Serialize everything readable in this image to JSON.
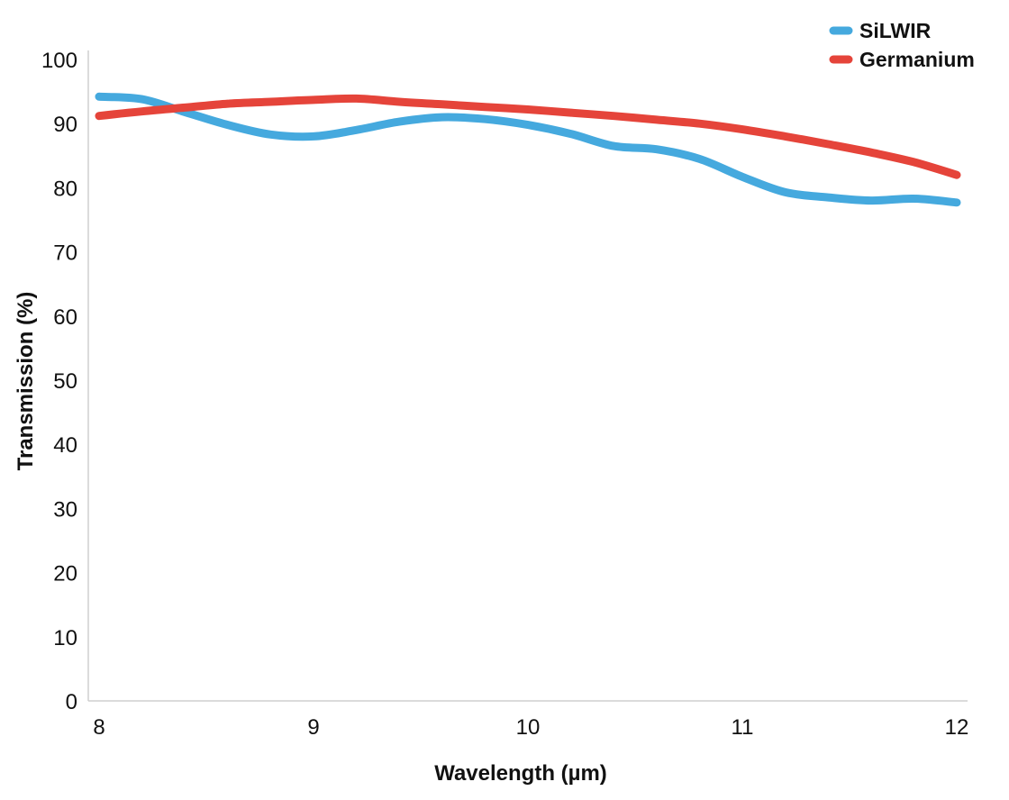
{
  "chart_data": {
    "type": "line",
    "xlabel": "Wavelength (µm)",
    "ylabel": "Transmission (%)",
    "xlim": [
      8,
      12
    ],
    "ylim": [
      0,
      100
    ],
    "xticks": [
      "8",
      "9",
      "10",
      "11",
      "12"
    ],
    "yticks": [
      "0",
      "10",
      "20",
      "30",
      "40",
      "50",
      "60",
      "70",
      "80",
      "90",
      "100"
    ],
    "grid": false,
    "legend_position": "top-right",
    "series": [
      {
        "name": "SiLWIR",
        "color": "#45a9de",
        "points": [
          [
            8.0,
            94.2
          ],
          [
            8.2,
            93.8
          ],
          [
            8.4,
            91.8
          ],
          [
            8.6,
            89.8
          ],
          [
            8.8,
            88.3
          ],
          [
            9.0,
            88.0
          ],
          [
            9.2,
            89.0
          ],
          [
            9.4,
            90.3
          ],
          [
            9.6,
            91.0
          ],
          [
            9.8,
            90.7
          ],
          [
            10.0,
            89.8
          ],
          [
            10.2,
            88.4
          ],
          [
            10.4,
            86.5
          ],
          [
            10.6,
            86.0
          ],
          [
            10.8,
            84.5
          ],
          [
            11.0,
            81.7
          ],
          [
            11.2,
            79.3
          ],
          [
            11.4,
            78.5
          ],
          [
            11.6,
            78.0
          ],
          [
            11.8,
            78.3
          ],
          [
            12.0,
            77.7
          ]
        ]
      },
      {
        "name": "Germanium",
        "color": "#e5443a",
        "points": [
          [
            8.0,
            91.2
          ],
          [
            8.2,
            91.9
          ],
          [
            8.4,
            92.5
          ],
          [
            8.6,
            93.1
          ],
          [
            8.8,
            93.4
          ],
          [
            9.0,
            93.7
          ],
          [
            9.2,
            93.9
          ],
          [
            9.4,
            93.4
          ],
          [
            9.6,
            93.0
          ],
          [
            9.8,
            92.6
          ],
          [
            10.0,
            92.2
          ],
          [
            10.2,
            91.7
          ],
          [
            10.4,
            91.2
          ],
          [
            10.6,
            90.6
          ],
          [
            10.8,
            90.0
          ],
          [
            11.0,
            89.1
          ],
          [
            11.2,
            88.0
          ],
          [
            11.4,
            86.8
          ],
          [
            11.6,
            85.5
          ],
          [
            11.8,
            84.0
          ],
          [
            12.0,
            82.0
          ]
        ]
      }
    ]
  }
}
